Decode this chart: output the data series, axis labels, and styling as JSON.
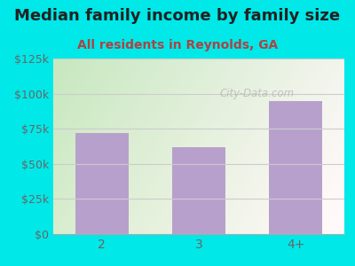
{
  "title": "Median family income by family size",
  "subtitle": "All residents in Reynolds, GA",
  "categories": [
    "2",
    "3",
    "4+"
  ],
  "values": [
    72000,
    62000,
    95000
  ],
  "bar_color": "#b8a0cc",
  "background_color": "#00e8e8",
  "title_color": "#222222",
  "subtitle_color": "#aa4444",
  "tick_label_color": "#666666",
  "ylim": [
    0,
    125000
  ],
  "yticks": [
    0,
    25000,
    50000,
    75000,
    100000,
    125000
  ],
  "ytick_labels": [
    "$0",
    "$25k",
    "$50k",
    "$75k",
    "$100k",
    "$125k"
  ],
  "title_fontsize": 13,
  "subtitle_fontsize": 10,
  "watermark": "City-Data.com"
}
